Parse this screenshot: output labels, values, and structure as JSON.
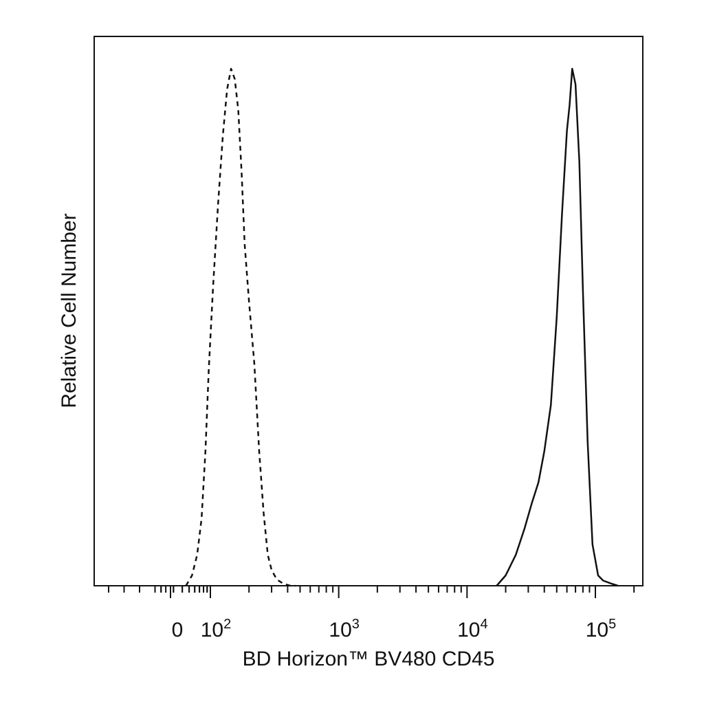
{
  "chart_data": {
    "type": "line",
    "title": "",
    "xlabel": "BD Horizon™ BV480 CD45",
    "ylabel": "Relative Cell Number",
    "x_scale": "biexponential",
    "xlim": [
      -200,
      250000
    ],
    "ylim": [
      0,
      1.0
    ],
    "grid": false,
    "legend": "none",
    "x_tick_labels": [
      {
        "value": 0,
        "base": "0",
        "exp": ""
      },
      {
        "value": 100,
        "base": "10",
        "exp": "2"
      },
      {
        "value": 1000,
        "base": "10",
        "exp": "3"
      },
      {
        "value": 10000,
        "base": "10",
        "exp": "4"
      },
      {
        "value": 100000,
        "base": "10",
        "exp": "5"
      }
    ],
    "series": [
      {
        "style": "dashed",
        "color": "#111111",
        "x": [
          45,
          55,
          65,
          75,
          85,
          95,
          105,
          115,
          125,
          135,
          145,
          155,
          165,
          175,
          185,
          200,
          220,
          240,
          260,
          280,
          300,
          330,
          370,
          420,
          460
        ],
        "y": [
          0.0,
          0.02,
          0.06,
          0.13,
          0.26,
          0.42,
          0.58,
          0.74,
          0.87,
          0.96,
          1.0,
          0.98,
          0.92,
          0.8,
          0.66,
          0.55,
          0.43,
          0.26,
          0.14,
          0.06,
          0.03,
          0.012,
          0.004,
          0.0,
          0.0
        ]
      },
      {
        "style": "solid",
        "color": "#111111",
        "x": [
          17000,
          20000,
          24000,
          28000,
          32000,
          36000,
          40000,
          45000,
          50000,
          55000,
          60000,
          63000,
          66000,
          70000,
          75000,
          80000,
          87000,
          95000,
          105000,
          115000,
          130000,
          150000
        ],
        "y": [
          0.0,
          0.02,
          0.06,
          0.11,
          0.16,
          0.2,
          0.26,
          0.35,
          0.52,
          0.72,
          0.88,
          0.93,
          1.0,
          0.97,
          0.82,
          0.57,
          0.28,
          0.08,
          0.02,
          0.01,
          0.005,
          0.0
        ]
      }
    ]
  }
}
